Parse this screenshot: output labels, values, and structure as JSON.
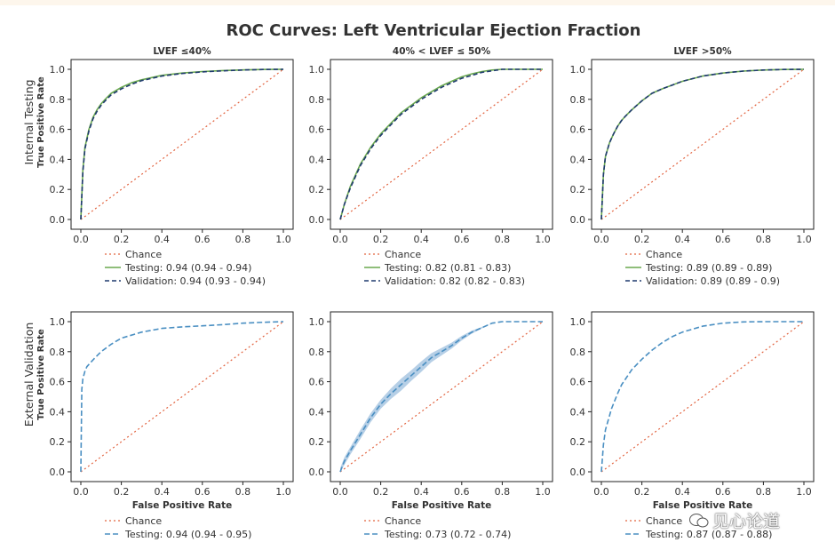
{
  "watermark": "见心论道",
  "colors": {
    "chance": "#e2633f",
    "testing": "#6aa84f",
    "validation": "#1f3a6e",
    "external": "#4a8fc2",
    "band": "#a9c7e2"
  },
  "chart_data": {
    "type": "line",
    "title": "ROC Curves: Left Ventricular Ejection Fraction",
    "xlabel": "False Positive Rate",
    "ylabel": "True Positive Rate",
    "xlim": [
      0,
      1
    ],
    "ylim": [
      0,
      1
    ],
    "ticks": [
      "0.0",
      "0.2",
      "0.4",
      "0.6",
      "0.8",
      "1.0"
    ],
    "row_labels": [
      "Internal Testing",
      "External Validation"
    ],
    "panels": [
      {
        "row": 0,
        "col": 0,
        "title": "LVEF ≤40%",
        "x": [
          0,
          0.01,
          0.02,
          0.04,
          0.06,
          0.08,
          0.1,
          0.12,
          0.15,
          0.2,
          0.25,
          0.3,
          0.4,
          0.5,
          0.6,
          0.7,
          0.8,
          0.9,
          1.0
        ],
        "series": [
          {
            "name": "Chance",
            "legend": "Chance",
            "style": "chance"
          },
          {
            "name": "Testing",
            "legend": "Testing: 0.94 (0.94 - 0.94)",
            "style": "testing",
            "y": [
              0,
              0.33,
              0.48,
              0.6,
              0.68,
              0.73,
              0.77,
              0.8,
              0.84,
              0.88,
              0.91,
              0.93,
              0.96,
              0.975,
              0.985,
              0.992,
              0.996,
              0.999,
              1.0
            ]
          },
          {
            "name": "Validation",
            "legend": "Validation: 0.94 (0.93 - 0.94)",
            "style": "validation",
            "y": [
              0,
              0.32,
              0.47,
              0.59,
              0.67,
              0.72,
              0.76,
              0.79,
              0.83,
              0.87,
              0.9,
              0.925,
              0.955,
              0.972,
              0.983,
              0.99,
              0.995,
              0.999,
              1.0
            ]
          }
        ]
      },
      {
        "row": 0,
        "col": 1,
        "title": "40% < LVEF ≤ 50%",
        "x": [
          0,
          0.01,
          0.02,
          0.05,
          0.1,
          0.15,
          0.2,
          0.25,
          0.3,
          0.35,
          0.4,
          0.45,
          0.5,
          0.55,
          0.6,
          0.65,
          0.7,
          0.75,
          0.8,
          0.9,
          1.0
        ],
        "series": [
          {
            "name": "Chance",
            "legend": "Chance",
            "style": "chance"
          },
          {
            "name": "Testing",
            "legend": "Testing: 0.82 (0.81 - 0.83)",
            "style": "testing",
            "y": [
              0,
              0.05,
              0.1,
              0.22,
              0.37,
              0.48,
              0.57,
              0.64,
              0.71,
              0.76,
              0.81,
              0.85,
              0.89,
              0.92,
              0.95,
              0.97,
              0.985,
              0.995,
              1.0,
              1.0,
              1.0
            ]
          },
          {
            "name": "Validation",
            "legend": "Validation: 0.82 (0.82 - 0.83)",
            "style": "validation",
            "y": [
              0,
              0.05,
              0.1,
              0.21,
              0.36,
              0.47,
              0.56,
              0.63,
              0.7,
              0.75,
              0.8,
              0.84,
              0.88,
              0.91,
              0.94,
              0.96,
              0.98,
              0.99,
              1.0,
              1.0,
              1.0
            ]
          }
        ]
      },
      {
        "row": 0,
        "col": 2,
        "title": "LVEF >50%",
        "x": [
          0,
          0.01,
          0.02,
          0.04,
          0.06,
          0.08,
          0.1,
          0.12,
          0.15,
          0.2,
          0.25,
          0.3,
          0.4,
          0.5,
          0.6,
          0.7,
          0.8,
          0.9,
          1.0
        ],
        "series": [
          {
            "name": "Chance",
            "legend": "Chance",
            "style": "chance"
          },
          {
            "name": "Testing",
            "legend": "Testing: 0.89 (0.89 - 0.89)",
            "style": "testing",
            "y": [
              0,
              0.3,
              0.42,
              0.51,
              0.57,
              0.62,
              0.66,
              0.69,
              0.73,
              0.79,
              0.84,
              0.87,
              0.92,
              0.955,
              0.975,
              0.988,
              0.995,
              0.999,
              1.0
            ]
          },
          {
            "name": "Validation",
            "legend": "Validation: 0.89 (0.89 - 0.9)",
            "style": "validation",
            "y": [
              0,
              0.3,
              0.42,
              0.51,
              0.57,
              0.62,
              0.66,
              0.69,
              0.73,
              0.79,
              0.84,
              0.87,
              0.92,
              0.955,
              0.975,
              0.988,
              0.995,
              0.999,
              1.0
            ]
          }
        ]
      },
      {
        "row": 1,
        "col": 0,
        "title": "",
        "x": [
          0,
          0.005,
          0.01,
          0.02,
          0.03,
          0.05,
          0.07,
          0.1,
          0.15,
          0.2,
          0.3,
          0.4,
          0.5,
          0.6,
          0.7,
          0.8,
          0.9,
          1.0
        ],
        "series": [
          {
            "name": "Chance",
            "legend": "Chance",
            "style": "chance"
          },
          {
            "name": "Testing",
            "legend": "Testing: 0.94 (0.94 - 0.95)",
            "style": "external",
            "y": [
              0,
              0.55,
              0.62,
              0.67,
              0.7,
              0.73,
              0.76,
              0.8,
              0.85,
              0.89,
              0.93,
              0.955,
              0.965,
              0.972,
              0.98,
              0.99,
              0.996,
              1.0
            ]
          }
        ]
      },
      {
        "row": 1,
        "col": 1,
        "title": "",
        "band": [
          0.025,
          0.025,
          0.025,
          0.03,
          0.03,
          0.03,
          0.035,
          0.04,
          0.035,
          0.035,
          0.03,
          0.025,
          0.02,
          0.015,
          0.01,
          0.005,
          0,
          0,
          0
        ],
        "x": [
          0,
          0.02,
          0.05,
          0.1,
          0.15,
          0.2,
          0.25,
          0.3,
          0.35,
          0.4,
          0.45,
          0.5,
          0.55,
          0.6,
          0.65,
          0.7,
          0.75,
          0.8,
          1.0
        ],
        "series": [
          {
            "name": "Chance",
            "legend": "Chance",
            "style": "chance"
          },
          {
            "name": "Testing",
            "legend": "Testing: 0.73 (0.72 - 0.74)",
            "style": "external",
            "y": [
              0,
              0.07,
              0.14,
              0.25,
              0.36,
              0.45,
              0.52,
              0.58,
              0.64,
              0.7,
              0.76,
              0.8,
              0.84,
              0.89,
              0.93,
              0.96,
              0.99,
              1.0,
              1.0
            ]
          }
        ]
      },
      {
        "row": 1,
        "col": 2,
        "title": "",
        "x": [
          0,
          0.01,
          0.02,
          0.05,
          0.08,
          0.1,
          0.15,
          0.2,
          0.25,
          0.3,
          0.35,
          0.4,
          0.5,
          0.6,
          0.7,
          0.8,
          0.9,
          1.0
        ],
        "series": [
          {
            "name": "Chance",
            "legend": "Chance",
            "style": "chance"
          },
          {
            "name": "Testing",
            "legend": "Testing: 0.87 (0.87 - 0.88)",
            "style": "external",
            "y": [
              0,
              0.18,
              0.28,
              0.42,
              0.52,
              0.58,
              0.68,
              0.75,
              0.81,
              0.86,
              0.9,
              0.93,
              0.97,
              0.99,
              0.998,
              1.0,
              1.0,
              1.0
            ]
          }
        ]
      }
    ]
  }
}
